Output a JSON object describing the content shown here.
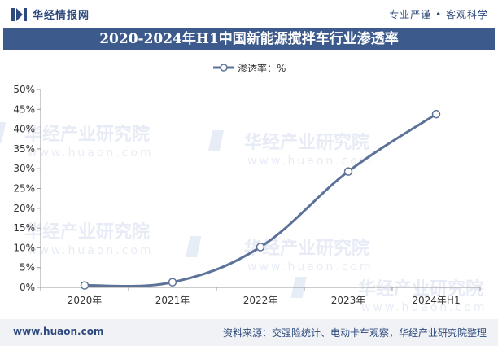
{
  "header": {
    "brand_name": "华经情报网",
    "slogan": "专业严谨 • 客观科学"
  },
  "chart_data": {
    "type": "line",
    "title": "2020-2024年H1中国新能源搅拌车行业渗透率",
    "categories": [
      "2020年",
      "2021年",
      "2022年",
      "2023年",
      "2024年H1"
    ],
    "series": [
      {
        "name": "渗透率：%",
        "values": [
          0.5,
          1.3,
          10.2,
          29.3,
          43.8
        ]
      }
    ],
    "y_ticks": [
      "0%",
      "5%",
      "10%",
      "15%",
      "20%",
      "25%",
      "30%",
      "35%",
      "40%",
      "45%",
      "50%"
    ],
    "ylim": [
      0,
      50
    ],
    "legend_position": "top-center",
    "grid": false,
    "line_color": "#5c7298"
  },
  "watermark": {
    "text_cn": "华经产业研究院",
    "text_url": "www.huaon.com"
  },
  "footer": {
    "url": "www.huaon.com",
    "source": "资料来源：交强险统计、电动卡车观察，华经产业研究院整理"
  }
}
